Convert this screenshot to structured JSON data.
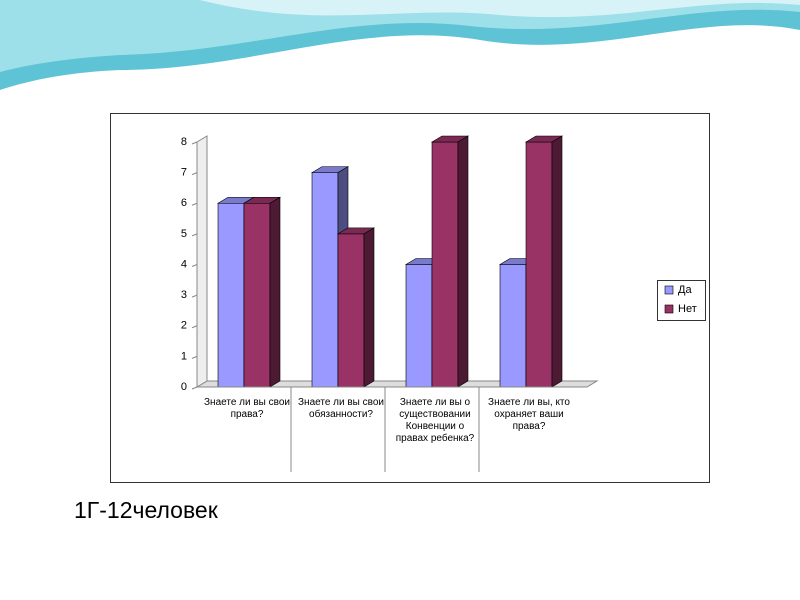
{
  "chart_data": {
    "type": "bar",
    "categories": [
      "Знаете ли вы свои права?",
      "Знаете ли вы свои обязанности?",
      "Знаете ли вы о существовании Конвенции о правах ребенка?",
      "Знаете ли вы, кто охраняет ваши права?"
    ],
    "series": [
      {
        "name": "Да",
        "color": "#9999ff",
        "values": [
          6,
          7,
          4,
          4
        ]
      },
      {
        "name": "Нет",
        "color": "#993366",
        "values": [
          6,
          5,
          8,
          8
        ]
      }
    ],
    "ylim": [
      0,
      8
    ],
    "yticks": [
      0,
      1,
      2,
      3,
      4,
      5,
      6,
      7,
      8
    ],
    "grid": false,
    "legend": "right"
  },
  "caption": "1Г-12человек"
}
